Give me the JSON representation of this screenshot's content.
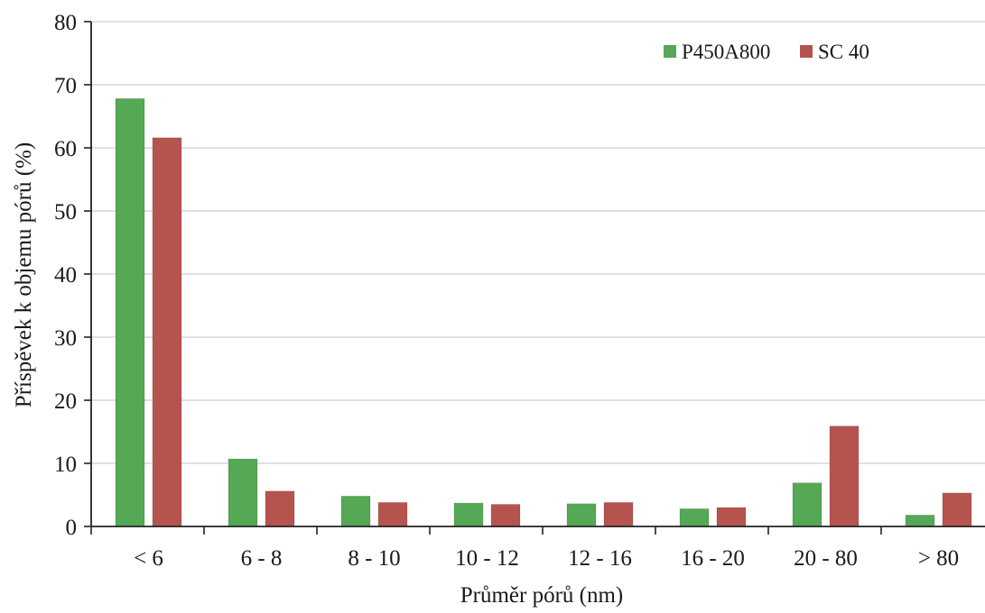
{
  "chart_data": {
    "type": "bar",
    "xlabel": "Průměr pórů (nm)",
    "ylabel": "Příspěvek k objemu pórů (%)",
    "ylim": [
      0,
      80
    ],
    "yticks": [
      0,
      10,
      20,
      30,
      40,
      50,
      60,
      70,
      80
    ],
    "grid": true,
    "legend_position": "top-right",
    "categories": [
      "< 6",
      "6 - 8",
      "8 - 10",
      "10 - 12",
      "12 - 16",
      "16 - 20",
      "20 - 80",
      "> 80"
    ],
    "series": [
      {
        "name": "P450A800",
        "color": "#55a855",
        "values": [
          67.8,
          10.7,
          4.8,
          3.7,
          3.6,
          2.8,
          6.9,
          1.8
        ]
      },
      {
        "name": "SC 40",
        "color": "#b5544e",
        "values": [
          61.6,
          5.6,
          3.8,
          3.5,
          3.8,
          3.0,
          15.9,
          5.3
        ]
      }
    ]
  }
}
